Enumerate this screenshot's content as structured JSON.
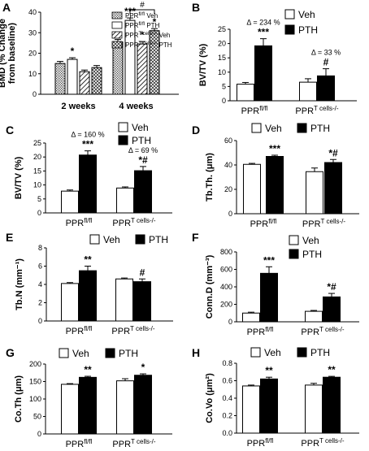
{
  "chart_data": [
    {
      "panel": "A",
      "type": "bar",
      "ylabel": "BMD (% Change from baseline)",
      "ylim": [
        0,
        40
      ],
      "yticks": [
        "0",
        "10",
        "20",
        "30",
        "40"
      ],
      "categories": [
        "2 weeks",
        "4 weeks"
      ],
      "series": [
        {
          "name": "PPRfl/fl Veh",
          "pattern": "dots",
          "values": [
            15,
            25.5
          ],
          "errors": [
            1,
            1.2
          ]
        },
        {
          "name": "PPRfl/fl PTH",
          "pattern": "white",
          "values": [
            17,
            36
          ],
          "errors": [
            0.8,
            1.2
          ]
        },
        {
          "name": "PPRT cells-/- Veh",
          "pattern": "hatch",
          "values": [
            11,
            24.5
          ],
          "errors": [
            0.8,
            1.2
          ]
        },
        {
          "name": "PPRT cells-/- PTH",
          "pattern": "cross",
          "values": [
            13,
            31
          ],
          "errors": [
            1,
            1
          ]
        }
      ],
      "annotations": [
        "*",
        "***",
        "*",
        "*",
        "#"
      ]
    },
    {
      "panel": "B",
      "type": "bar",
      "ylabel": "BV/TV (%)",
      "ylim": [
        0,
        25
      ],
      "yticks": [
        "0",
        "5",
        "10",
        "15",
        "20",
        "25"
      ],
      "categories": [
        "PPRfl/fl",
        "PPRT cells-/-"
      ],
      "series": [
        {
          "name": "Veh",
          "values": [
            5.8,
            6.5
          ],
          "errors": [
            0.6,
            1.2
          ]
        },
        {
          "name": "PTH",
          "values": [
            19.2,
            8.7
          ],
          "errors": [
            2.5,
            2.5
          ]
        }
      ],
      "deltas": [
        "Δ = 234 %",
        "Δ = 33 %"
      ],
      "marks": [
        "***",
        "#"
      ]
    },
    {
      "panel": "C",
      "type": "bar",
      "ylabel": "BV/TV (%)",
      "ylim": [
        0,
        25
      ],
      "yticks": [
        "0",
        "5",
        "10",
        "15",
        "20",
        "25"
      ],
      "categories": [
        "PPRfl/fl",
        "PPRT cells-/-"
      ],
      "series": [
        {
          "name": "Veh",
          "values": [
            7.8,
            8.9
          ],
          "errors": [
            0.4,
            0.4
          ]
        },
        {
          "name": "PTH",
          "values": [
            20.7,
            15.1
          ],
          "errors": [
            1.5,
            1.5
          ]
        }
      ],
      "deltas": [
        "Δ = 160 %",
        "Δ = 69 %"
      ],
      "marks": [
        "***",
        "*#"
      ]
    },
    {
      "panel": "D",
      "type": "bar",
      "ylabel": "Tb.Th. (μm)",
      "ylim": [
        0,
        60
      ],
      "yticks": [
        "0",
        "20",
        "40",
        "60"
      ],
      "categories": [
        "PPRfl/fl",
        "PPRT cells-/-"
      ],
      "series": [
        {
          "name": "Veh",
          "values": [
            40.5,
            34.5
          ],
          "errors": [
            0.8,
            3
          ]
        },
        {
          "name": "PTH",
          "values": [
            47,
            42
          ],
          "errors": [
            1,
            2.5
          ]
        }
      ],
      "marks": [
        "***",
        "*#"
      ]
    },
    {
      "panel": "E",
      "type": "bar",
      "ylabel": "Tb.N (mm⁻¹)",
      "ylim": [
        0,
        8
      ],
      "yticks": [
        "0",
        "2",
        "4",
        "6",
        "8"
      ],
      "categories": [
        "PPRfl/fl",
        "PPRT cells-/-"
      ],
      "series": [
        {
          "name": "Veh",
          "values": [
            4.1,
            4.6
          ],
          "errors": [
            0.1,
            0.1
          ]
        },
        {
          "name": "PTH",
          "values": [
            5.5,
            4.3
          ],
          "errors": [
            0.5,
            0.3
          ]
        }
      ],
      "marks": [
        "**",
        "#"
      ]
    },
    {
      "panel": "F",
      "type": "bar",
      "ylabel": "Conn.D (mm⁻³)",
      "ylim": [
        0,
        800
      ],
      "yticks": [
        "0",
        "200",
        "400",
        "600",
        "800"
      ],
      "categories": [
        "PPRfl/fl",
        "PPRT cells-/-"
      ],
      "series": [
        {
          "name": "Veh",
          "values": [
            100,
            120
          ],
          "errors": [
            10,
            10
          ]
        },
        {
          "name": "PTH",
          "values": [
            555,
            285
          ],
          "errors": [
            75,
            40
          ]
        }
      ],
      "marks": [
        "***",
        "*#"
      ]
    },
    {
      "panel": "G",
      "type": "bar",
      "ylabel": "Co.Th (μm)",
      "ylim": [
        0,
        200
      ],
      "yticks": [
        "0",
        "50",
        "100",
        "150",
        "200"
      ],
      "categories": [
        "PPRfl/fl",
        "PPRT cells-/-"
      ],
      "series": [
        {
          "name": "Veh",
          "values": [
            142,
            152
          ],
          "errors": [
            2,
            6
          ]
        },
        {
          "name": "PTH",
          "values": [
            162,
            168
          ],
          "errors": [
            3,
            4
          ]
        }
      ],
      "marks": [
        "**",
        "*"
      ]
    },
    {
      "panel": "H",
      "type": "bar",
      "ylabel": "Co.Vo (μm²)",
      "ylim": [
        0,
        0.8
      ],
      "yticks": [
        "0.0",
        "0.2",
        "0.4",
        "0.6",
        "0.8"
      ],
      "categories": [
        "PPRfl/fl",
        "PPRT cells-/-"
      ],
      "series": [
        {
          "name": "Veh",
          "values": [
            0.54,
            0.55
          ],
          "errors": [
            0.01,
            0.02
          ]
        },
        {
          "name": "PTH",
          "values": [
            0.62,
            0.64
          ],
          "errors": [
            0.02,
            0.01
          ]
        }
      ],
      "marks": [
        "**",
        "**"
      ]
    }
  ]
}
